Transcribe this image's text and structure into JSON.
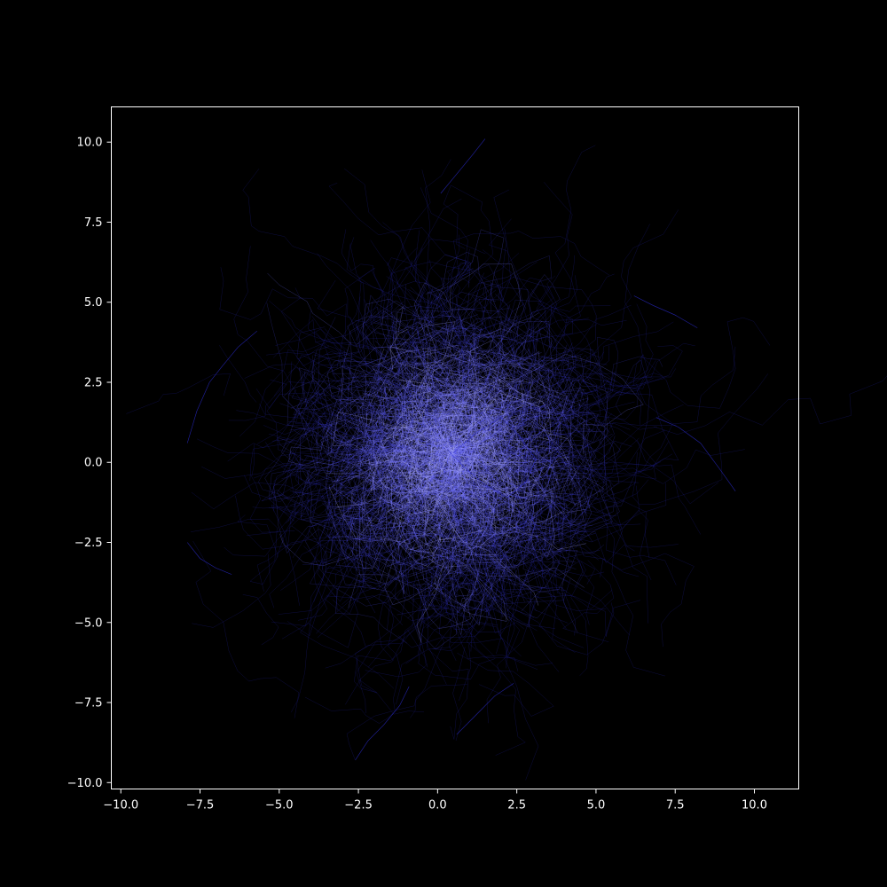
{
  "chart_data": {
    "type": "line",
    "title": "",
    "xlabel": "",
    "ylabel": "",
    "xlim": [
      -10.3,
      11.4
    ],
    "ylim": [
      -10.2,
      11.1
    ],
    "xticks": [
      -10.0,
      -7.5,
      -5.0,
      -2.5,
      0.0,
      2.5,
      5.0,
      7.5,
      10.0
    ],
    "yticks": [
      -10.0,
      -7.5,
      -5.0,
      -2.5,
      0.0,
      2.5,
      5.0,
      7.5,
      10.0
    ],
    "xtick_labels": [
      "−10.0",
      "−7.5",
      "−5.0",
      "−2.5",
      "0.0",
      "2.5",
      "5.0",
      "7.5",
      "10.0"
    ],
    "ytick_labels": [
      "−10.0",
      "−7.5",
      "−5.0",
      "−2.5",
      "0.0",
      "2.5",
      "5.0",
      "7.5",
      "10.0"
    ],
    "grid": false,
    "legend": "none",
    "description_of_data": "dense cloud of thin random-walk trajectories centered near (0.5, 0.3), radius roughly 5-6 units, brightest at center",
    "cloud_center": [
      0.5,
      0.3
    ],
    "cloud_radius": 5.5,
    "x_extent": [
      -8.0,
      9.4
    ],
    "y_extent": [
      -9.3,
      10.1
    ],
    "series": [
      {
        "x": [
          0.5,
          1.2,
          2.0,
          2.6,
          3.1,
          2.8,
          2.2,
          1.5,
          0.9,
          0.3
        ],
        "y": [
          0.3,
          0.9,
          1.4,
          0.8,
          0.1,
          -0.6,
          -1.1,
          -0.7,
          -0.2,
          0.4
        ]
      },
      {
        "x": [
          -7.9,
          -7.6,
          -7.2,
          -6.8,
          -6.3,
          -5.7
        ],
        "y": [
          0.6,
          1.6,
          2.5,
          3.0,
          3.6,
          4.1
        ]
      },
      {
        "x": [
          -7.9,
          -7.5,
          -7.0,
          -6.5
        ],
        "y": [
          -2.5,
          -3.0,
          -3.3,
          -3.5
        ]
      },
      {
        "x": [
          9.4,
          8.9,
          8.3,
          7.6,
          6.9
        ],
        "y": [
          -0.9,
          -0.2,
          0.6,
          1.1,
          1.4
        ]
      },
      {
        "x": [
          8.2,
          7.5,
          6.8,
          6.2
        ],
        "y": [
          4.2,
          4.6,
          4.9,
          5.2
        ]
      },
      {
        "x": [
          1.5,
          1.1,
          0.6,
          0.1
        ],
        "y": [
          10.1,
          9.6,
          9.0,
          8.4
        ]
      },
      {
        "x": [
          -2.6,
          -2.2,
          -1.7,
          -1.2,
          -0.9
        ],
        "y": [
          -9.3,
          -8.7,
          -8.2,
          -7.6,
          -7.0
        ]
      },
      {
        "x": [
          0.6,
          1.2,
          1.8,
          2.4
        ],
        "y": [
          -8.5,
          -7.9,
          -7.3,
          -6.9
        ]
      }
    ],
    "colors": {
      "background": "#000000",
      "spine": "#ffffff",
      "tick": "#ffffff",
      "line_outer": "#2a2ad0",
      "line_mid": "#6c6cff",
      "line_inner": "#c8c8ff"
    }
  }
}
